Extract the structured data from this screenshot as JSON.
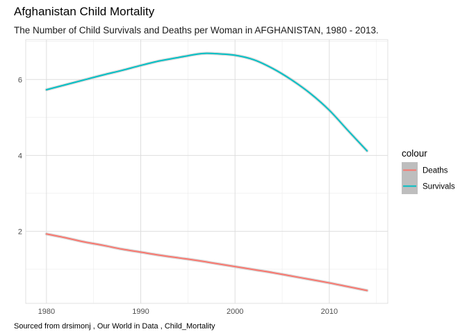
{
  "chart_data": {
    "type": "line",
    "title": "Afghanistan Child Mortality",
    "subtitle": "The Number of Child Survivals and Deaths per Woman in AFGHANISTAN, 1980 - 2013.",
    "caption": "Sourced from drsimonj , Our World in Data , Child_Mortality",
    "xlabel": "",
    "ylabel": "",
    "xlim": [
      1977.8,
      2016.2
    ],
    "ylim": [
      0.1,
      7.05
    ],
    "x_ticks": [
      1980,
      1990,
      2000,
      2010
    ],
    "y_ticks": [
      2,
      4,
      6
    ],
    "grid": true,
    "legend": {
      "title": "colour",
      "placement": "right",
      "entries": [
        "Deaths",
        "Survivals"
      ]
    },
    "series": [
      {
        "name": "Survivals",
        "color": "#00BFC4",
        "x": [
          1980,
          1982,
          1984,
          1986,
          1988,
          1990,
          1992,
          1994,
          1996,
          1997,
          1998,
          2000,
          2002,
          2004,
          2006,
          2008,
          2010,
          2012,
          2014
        ],
        "values": [
          5.73,
          5.86,
          5.99,
          6.12,
          6.24,
          6.37,
          6.49,
          6.58,
          6.67,
          6.69,
          6.68,
          6.64,
          6.52,
          6.29,
          5.99,
          5.63,
          5.19,
          4.65,
          4.12
        ]
      },
      {
        "name": "Deaths",
        "color": "#F8766D",
        "x": [
          1980,
          1982,
          1984,
          1986,
          1988,
          1990,
          1992,
          1994,
          1996,
          1998,
          2000,
          2002,
          2004,
          2006,
          2008,
          2010,
          2012,
          2014
        ],
        "values": [
          1.93,
          1.83,
          1.72,
          1.63,
          1.53,
          1.45,
          1.37,
          1.3,
          1.23,
          1.15,
          1.07,
          0.99,
          0.91,
          0.82,
          0.73,
          0.64,
          0.54,
          0.44
        ]
      }
    ]
  }
}
